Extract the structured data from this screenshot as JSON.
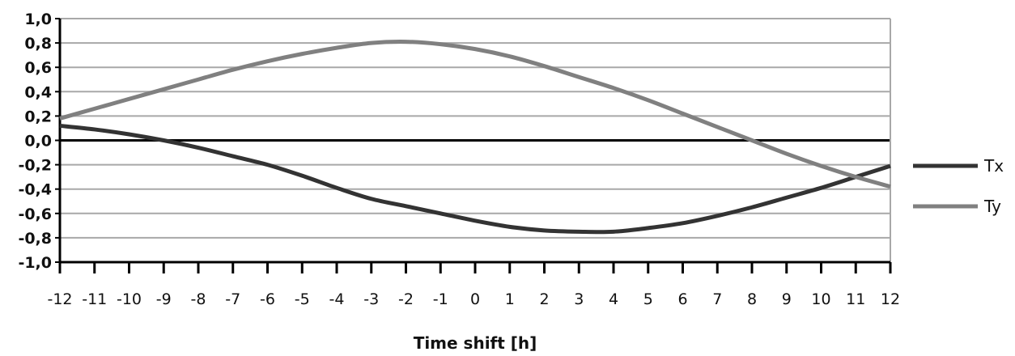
{
  "chart_data": {
    "type": "line",
    "title": "",
    "xlabel": "Time shift [h]",
    "ylabel": "",
    "x": [
      -12,
      -11,
      -10,
      -9,
      -8,
      -7,
      -6,
      -5,
      -4,
      -3,
      -2,
      -1,
      0,
      1,
      2,
      3,
      4,
      5,
      6,
      7,
      8,
      9,
      10,
      11,
      12
    ],
    "x_tick_labels": [
      "-12",
      "-11",
      "-10",
      "-9",
      "-8",
      "-7",
      "-6",
      "-5",
      "-4",
      "-3",
      "-2",
      "-1",
      "0",
      "1",
      "2",
      "3",
      "4",
      "5",
      "6",
      "7",
      "8",
      "9",
      "10",
      "11",
      "12"
    ],
    "y_tick_values": [
      1.0,
      0.8,
      0.6,
      0.4,
      0.2,
      0.0,
      -0.2,
      -0.4,
      -0.6,
      -0.8,
      -1.0
    ],
    "y_tick_labels": [
      "1,0",
      "0,8",
      "0,6",
      "0,4",
      "0,2",
      "0,0",
      "-0,2",
      "-0,4",
      "-0,6",
      "-0,8",
      "-1,0"
    ],
    "xlim": [
      -12,
      12
    ],
    "ylim": [
      -1.0,
      1.0
    ],
    "grid": true,
    "legend_position": "right",
    "series": [
      {
        "name": "Tx",
        "color": "#333333",
        "values": [
          0.12,
          0.09,
          0.05,
          0.0,
          -0.06,
          -0.13,
          -0.2,
          -0.29,
          -0.39,
          -0.48,
          -0.54,
          -0.6,
          -0.66,
          -0.71,
          -0.74,
          -0.75,
          -0.75,
          -0.72,
          -0.68,
          -0.62,
          -0.55,
          -0.47,
          -0.39,
          -0.3,
          -0.21
        ]
      },
      {
        "name": "Ty",
        "color": "#808080",
        "values": [
          0.18,
          0.26,
          0.34,
          0.42,
          0.5,
          0.58,
          0.65,
          0.71,
          0.76,
          0.8,
          0.81,
          0.79,
          0.75,
          0.69,
          0.61,
          0.52,
          0.43,
          0.33,
          0.22,
          0.11,
          0.0,
          -0.11,
          -0.21,
          -0.3,
          -0.38
        ]
      }
    ],
    "colors": {
      "gridline": "#a8a8a8",
      "axis": "#000000"
    }
  }
}
